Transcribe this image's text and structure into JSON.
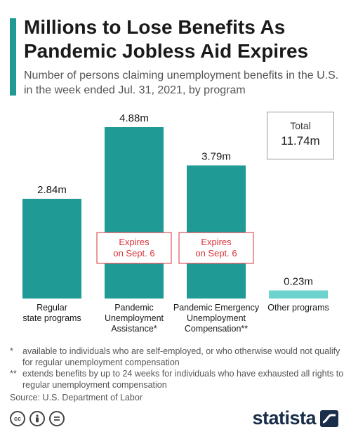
{
  "title": "Millions to Lose Benefits As Pandemic Jobless Aid Expires",
  "subtitle": "Number of persons claiming unemployment benefits in the U.S. in the week ended Jul. 31, 2021, by program",
  "total": {
    "label": "Total",
    "value": "11.74m"
  },
  "chart_data": {
    "type": "bar",
    "categories": [
      [
        "Regular",
        "state programs"
      ],
      [
        "Pandemic",
        "Unemployment",
        "Assistance*"
      ],
      [
        "Pandemic Emergency",
        "Unemployment",
        "Compensation**"
      ],
      [
        "Other programs"
      ]
    ],
    "values": [
      2.84,
      4.88,
      3.79,
      0.23
    ],
    "value_labels": [
      "2.84m",
      "4.88m",
      "3.79m",
      "0.23m"
    ],
    "unit": "m",
    "ylim": [
      0,
      4.88
    ],
    "grid": false,
    "colors": [
      "#1f9a94",
      "#1f9a94",
      "#1f9a94",
      "#6cd3cd"
    ],
    "annotations": [
      {
        "category_index": 1,
        "lines": [
          "Expires",
          "on Sept. 6"
        ],
        "color": "#d9323a"
      },
      {
        "category_index": 2,
        "lines": [
          "Expires",
          "on Sept. 6"
        ],
        "color": "#d9323a"
      }
    ]
  },
  "footnotes": [
    {
      "mark": "*",
      "text": "available to individuals who are self-employed, or who otherwise would not qualify for regular unemployment compensation"
    },
    {
      "mark": "**",
      "text": "extends benefits by up to 24 weeks for individuals who have exhausted all rights to regular unemployment compensation"
    }
  ],
  "source": "Source: U.S. Department of Labor",
  "license_icons": [
    "cc",
    "attribution",
    "no-derivatives"
  ],
  "brand": "statista"
}
